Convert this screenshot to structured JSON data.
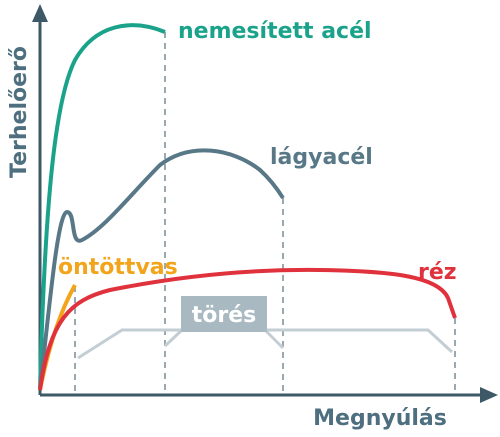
{
  "axes": {
    "y": "Terhelőerő",
    "x": "Megnyúlás"
  },
  "curves": [
    "nemesített acél",
    "lágyacél",
    "öntöttvas",
    "réz"
  ],
  "break_label": "törés"
}
